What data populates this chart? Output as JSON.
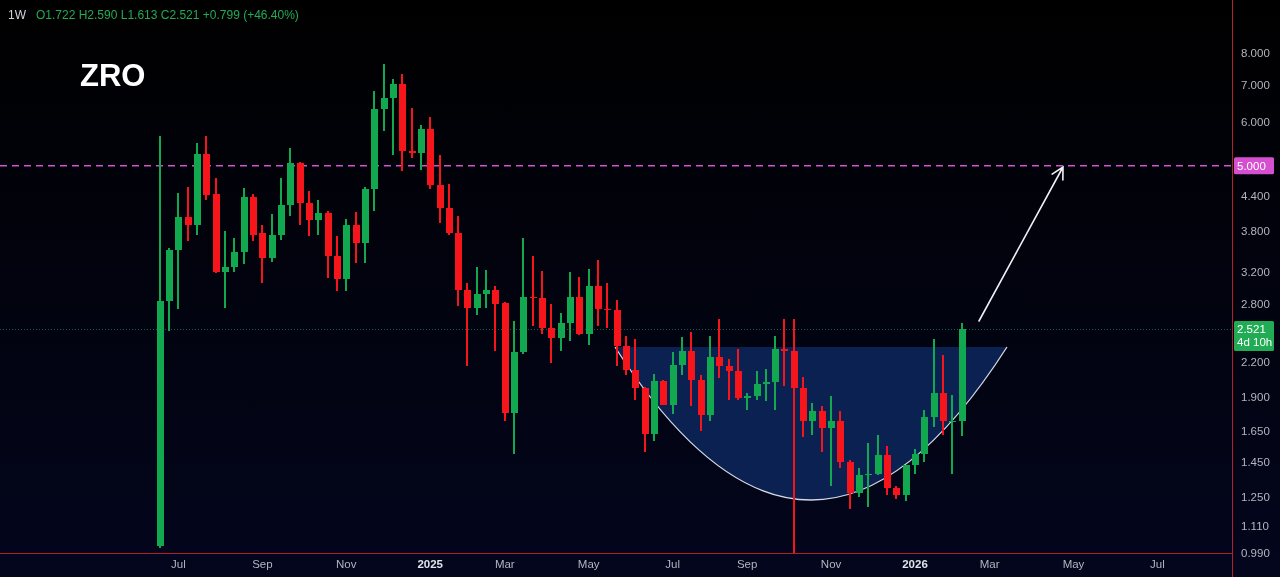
{
  "chart_data": {
    "type": "candlestick",
    "title": "ZRO",
    "subtitle": "1W",
    "annotations": [
      "O1.722 H2.590 L1.613 C2.521 +0.799 (+46.40%)",
      "4d 10h"
    ],
    "x": [
      "2024-06-17",
      "2024-06-24",
      "2024-07-01",
      "2024-07-08",
      "2024-07-15",
      "2024-07-22",
      "2024-07-29",
      "2024-08-05",
      "2024-08-12",
      "2024-08-19",
      "2024-08-26",
      "2024-09-02",
      "2024-09-09",
      "2024-09-16",
      "2024-09-23",
      "2024-09-30",
      "2024-10-07",
      "2024-10-14",
      "2024-10-21",
      "2024-10-28",
      "2024-11-04",
      "2024-11-11",
      "2024-11-18",
      "2024-11-25",
      "2024-12-02",
      "2024-12-09",
      "2024-12-16",
      "2024-12-23",
      "2024-12-30",
      "2025-01-06",
      "2025-01-13",
      "2025-01-20",
      "2025-01-27",
      "2025-02-03",
      "2025-02-10",
      "2025-02-17",
      "2025-02-24",
      "2025-03-03",
      "2025-03-10",
      "2025-03-17",
      "2025-03-24",
      "2025-03-31",
      "2025-04-07",
      "2025-04-14",
      "2025-04-21",
      "2025-04-28",
      "2025-05-05",
      "2025-05-12",
      "2025-05-19",
      "2025-05-26",
      "2025-06-02",
      "2025-06-09",
      "2025-06-16",
      "2025-06-23",
      "2025-06-30",
      "2025-07-07",
      "2025-07-14",
      "2025-07-21",
      "2025-07-28",
      "2025-08-04",
      "2025-08-11",
      "2025-08-18",
      "2025-08-25",
      "2025-09-01",
      "2025-09-08",
      "2025-09-15",
      "2025-09-22",
      "2025-09-29",
      "2025-10-06",
      "2025-10-13",
      "2025-10-20",
      "2025-10-27",
      "2025-11-03",
      "2025-11-10",
      "2025-11-17",
      "2025-11-24",
      "2025-12-01",
      "2025-12-08",
      "2025-12-15",
      "2025-12-22",
      "2025-12-29",
      "2026-01-05",
      "2026-01-12",
      "2026-01-19",
      "2026-01-26",
      "2026-02-02",
      "2026-02-09"
    ],
    "ohlc": [
      [
        1.02,
        5.66,
        1.01,
        2.84
      ],
      [
        2.84,
        3.55,
        2.5,
        3.51
      ],
      [
        3.51,
        4.47,
        2.75,
        4.04
      ],
      [
        4.03,
        4.58,
        3.65,
        3.9
      ],
      [
        3.9,
        5.49,
        3.75,
        5.26
      ],
      [
        5.26,
        5.66,
        4.34,
        4.43
      ],
      [
        4.45,
        4.76,
        3.19,
        3.2
      ],
      [
        3.2,
        3.8,
        2.76,
        3.28
      ],
      [
        3.28,
        3.7,
        3.2,
        3.48
      ],
      [
        3.48,
        4.56,
        3.31,
        4.39
      ],
      [
        4.39,
        4.45,
        3.65,
        3.75
      ],
      [
        3.77,
        3.91,
        3.06,
        3.4
      ],
      [
        3.4,
        4.08,
        3.35,
        3.74
      ],
      [
        3.74,
        4.76,
        3.67,
        4.24
      ],
      [
        4.24,
        5.39,
        4.05,
        5.05
      ],
      [
        5.05,
        5.07,
        3.91,
        4.27
      ],
      [
        4.27,
        4.5,
        3.72,
        3.99
      ],
      [
        3.99,
        4.34,
        3.75,
        4.11
      ],
      [
        4.11,
        4.13,
        3.13,
        3.43
      ],
      [
        3.43,
        3.72,
        2.96,
        3.12
      ],
      [
        3.12,
        4.01,
        2.96,
        3.9
      ],
      [
        3.9,
        4.12,
        3.33,
        3.62
      ],
      [
        3.62,
        4.58,
        3.33,
        4.54
      ],
      [
        4.54,
        6.83,
        4.14,
        6.33
      ],
      [
        6.33,
        7.64,
        5.78,
        6.65
      ],
      [
        6.65,
        7.2,
        5.24,
        7.03
      ],
      [
        7.03,
        7.33,
        4.89,
        5.32
      ],
      [
        5.32,
        6.37,
        5.17,
        5.28
      ],
      [
        5.28,
        5.94,
        4.92,
        5.82
      ],
      [
        5.82,
        6.14,
        4.54,
        4.61
      ],
      [
        4.61,
        5.22,
        3.94,
        4.19
      ],
      [
        4.19,
        4.64,
        3.74,
        3.77
      ],
      [
        3.77,
        4.05,
        2.78,
        2.97
      ],
      [
        2.97,
        3.06,
        2.16,
        2.76
      ],
      [
        2.76,
        3.28,
        2.68,
        2.93
      ],
      [
        2.93,
        3.23,
        2.76,
        2.97
      ],
      [
        2.97,
        3.02,
        2.3,
        2.81
      ],
      [
        2.82,
        2.83,
        1.72,
        1.78
      ],
      [
        1.78,
        2.61,
        1.5,
        2.29
      ],
      [
        2.29,
        3.7,
        2.28,
        2.89
      ],
      [
        2.89,
        3.43,
        2.56,
        2.87
      ],
      [
        2.87,
        3.22,
        2.47,
        2.54
      ],
      [
        2.54,
        2.81,
        2.19,
        2.43
      ],
      [
        2.43,
        2.7,
        2.3,
        2.59
      ],
      [
        2.59,
        3.2,
        2.4,
        2.89
      ],
      [
        2.89,
        3.14,
        2.46,
        2.47
      ],
      [
        2.47,
        3.25,
        2.36,
        3.03
      ],
      [
        3.03,
        3.37,
        2.56,
        2.75
      ],
      [
        2.75,
        3.06,
        2.54,
        2.73
      ],
      [
        2.73,
        2.85,
        2.16,
        2.35
      ],
      [
        2.35,
        2.45,
        2.08,
        2.13
      ],
      [
        2.13,
        2.42,
        1.88,
        1.97
      ],
      [
        1.97,
        1.98,
        1.51,
        1.63
      ],
      [
        1.63,
        2.09,
        1.58,
        2.03
      ],
      [
        2.03,
        2.04,
        1.84,
        1.84
      ],
      [
        1.84,
        2.29,
        1.77,
        2.17
      ],
      [
        2.17,
        2.44,
        2.08,
        2.3
      ],
      [
        2.3,
        2.49,
        1.83,
        2.04
      ],
      [
        2.04,
        2.08,
        1.65,
        1.76
      ],
      [
        1.76,
        2.45,
        1.72,
        2.25
      ],
      [
        2.25,
        2.63,
        2.06,
        2.16
      ],
      [
        2.16,
        2.23,
        1.88,
        2.12
      ],
      [
        2.12,
        2.32,
        1.88,
        1.89
      ],
      [
        1.89,
        1.93,
        1.8,
        1.91
      ],
      [
        1.91,
        2.12,
        1.88,
        2.01
      ],
      [
        2.01,
        2.14,
        1.87,
        2.02
      ],
      [
        2.02,
        2.45,
        1.8,
        2.32
      ],
      [
        2.32,
        2.63,
        1.99,
        2.3
      ],
      [
        2.3,
        2.63,
        0.99,
        1.97
      ],
      [
        1.97,
        2.07,
        1.61,
        1.72
      ],
      [
        1.72,
        1.85,
        1.62,
        1.79
      ],
      [
        1.79,
        1.83,
        1.51,
        1.67
      ],
      [
        1.67,
        1.91,
        1.31,
        1.72
      ],
      [
        1.72,
        1.79,
        1.41,
        1.45
      ],
      [
        1.45,
        1.46,
        1.19,
        1.27
      ],
      [
        1.27,
        1.41,
        1.25,
        1.37
      ],
      [
        1.37,
        1.57,
        1.2,
        1.38
      ],
      [
        1.38,
        1.62,
        1.37,
        1.49
      ],
      [
        1.49,
        1.55,
        1.26,
        1.3
      ],
      [
        1.3,
        1.31,
        1.24,
        1.26
      ],
      [
        1.26,
        1.43,
        1.23,
        1.43
      ],
      [
        1.43,
        1.53,
        1.38,
        1.5
      ],
      [
        1.5,
        1.8,
        1.45,
        1.75
      ],
      [
        1.75,
        2.42,
        1.68,
        1.93
      ],
      [
        1.93,
        2.27,
        1.62,
        1.72
      ],
      [
        1.72,
        1.92,
        1.38,
        1.72
      ],
      [
        1.722,
        2.59,
        1.613,
        2.521
      ]
    ],
    "colors": [
      "#12a84f",
      "#12a84f",
      "#12a84f",
      "#f5151b",
      "#12a84f",
      "#f5151b",
      "#f5151b",
      "#12a84f",
      "#12a84f",
      "#12a84f",
      "#f5151b",
      "#f5151b",
      "#12a84f",
      "#12a84f",
      "#12a84f",
      "#f5151b",
      "#f5151b",
      "#12a84f",
      "#f5151b",
      "#f5151b",
      "#12a84f",
      "#f5151b",
      "#12a84f",
      "#12a84f",
      "#12a84f",
      "#12a84f",
      "#f5151b",
      "#f5151b",
      "#12a84f",
      "#f5151b",
      "#f5151b",
      "#f5151b",
      "#f5151b",
      "#f5151b",
      "#12a84f",
      "#12a84f",
      "#f5151b",
      "#f5151b",
      "#12a84f",
      "#12a84f",
      "#f5151b",
      "#f5151b",
      "#f5151b",
      "#12a84f",
      "#12a84f",
      "#f5151b",
      "#12a84f",
      "#f5151b",
      "#f5151b",
      "#f5151b",
      "#f5151b",
      "#f5151b",
      "#f5151b",
      "#12a84f",
      "#f5151b",
      "#12a84f",
      "#12a84f",
      "#f5151b",
      "#f5151b",
      "#12a84f",
      "#f5151b",
      "#f5151b",
      "#f5151b",
      "#12a84f",
      "#12a84f",
      "#12a84f",
      "#12a84f",
      "#f5151b",
      "#f5151b",
      "#f5151b",
      "#12a84f",
      "#f5151b",
      "#12a84f",
      "#f5151b",
      "#f5151b",
      "#12a84f",
      "#12a84f",
      "#12a84f",
      "#f5151b",
      "#f5151b",
      "#12a84f",
      "#12a84f",
      "#12a84f",
      "#12a84f",
      "#f5151b",
      "#12a84f",
      "#12a84f"
    ],
    "xlim": [
      "2024-02-18",
      "2026-08-31"
    ],
    "xticks": [
      {
        "value": "2024-07-01",
        "label": "Jul"
      },
      {
        "value": "2024-09-02",
        "label": "Sep"
      },
      {
        "value": "2024-11-04",
        "label": "Nov"
      },
      {
        "value": "2025-01-06",
        "label": "2025"
      },
      {
        "value": "2025-03-03",
        "label": "Mar"
      },
      {
        "value": "2025-05-05",
        "label": "May"
      },
      {
        "value": "2025-07-07",
        "label": "Jul"
      },
      {
        "value": "2025-09-01",
        "label": "Sep"
      },
      {
        "value": "2025-11-03",
        "label": "Nov"
      },
      {
        "value": "2026-01-05",
        "label": "2026"
      },
      {
        "value": "2026-03-02",
        "label": "Mar"
      },
      {
        "value": "2026-05-04",
        "label": "May"
      },
      {
        "value": "2026-07-06",
        "label": "Jul"
      }
    ],
    "ylim": [
      0.99,
      10
    ],
    "yticks": [
      {
        "value": 0.99,
        "label": "0.990"
      },
      {
        "value": 1.11,
        "label": "1.110"
      },
      {
        "value": 1.25,
        "label": "1.250"
      },
      {
        "value": 1.45,
        "label": "1.450"
      },
      {
        "value": 1.65,
        "label": "1.650"
      },
      {
        "value": 1.9,
        "label": "1.900"
      },
      {
        "value": 2.2,
        "label": "2.200"
      },
      {
        "value": 2.8,
        "label": "2.800"
      },
      {
        "value": 3.2,
        "label": "3.200"
      },
      {
        "value": 3.8,
        "label": "3.800"
      },
      {
        "value": 4.4,
        "label": "4.400"
      },
      {
        "value": 6,
        "label": "6.000"
      },
      {
        "value": 7,
        "label": "7.000"
      },
      {
        "value": 8,
        "label": "8.000"
      }
    ],
    "log": "y",
    "ref_lines": [
      {
        "axis": "y",
        "value": 5,
        "label": "5.000",
        "color": "#d64fd1",
        "line_style": "dashed"
      },
      {
        "axis": "y",
        "value": 2.521,
        "label": "2.521",
        "color": "#22ab55",
        "line_style": "dotted"
      }
    ]
  }
}
